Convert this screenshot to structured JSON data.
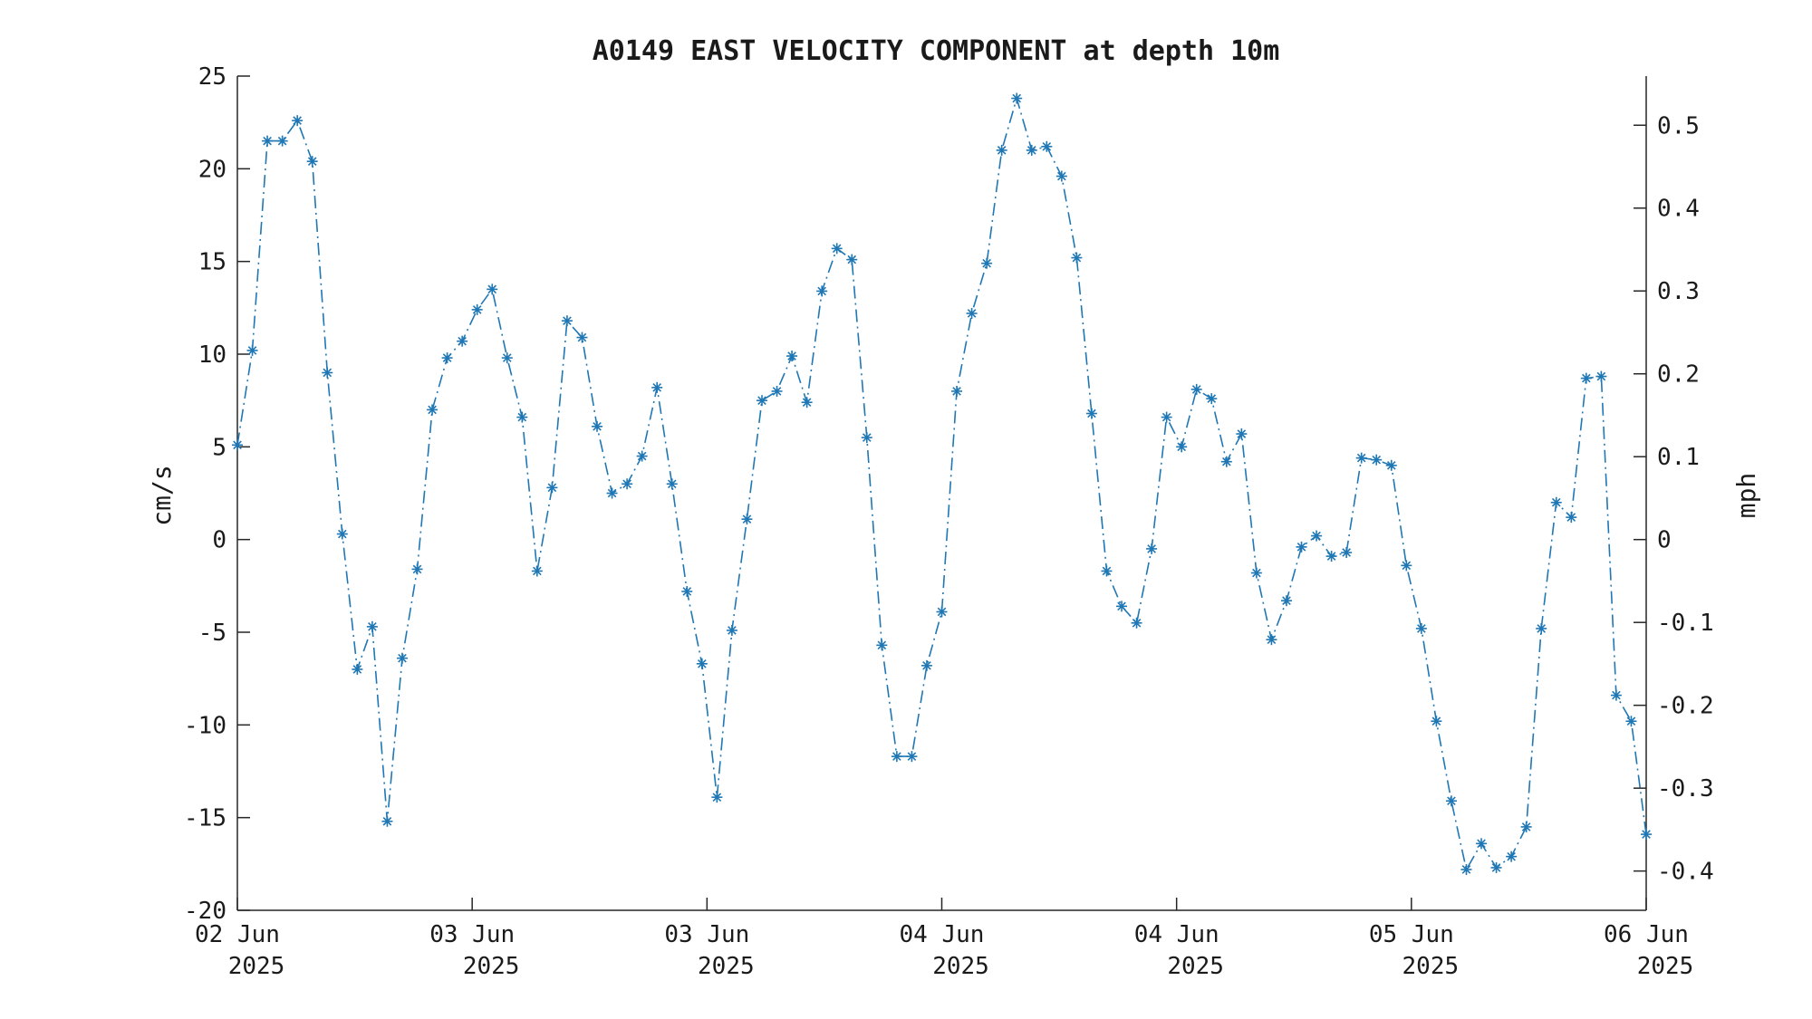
{
  "chart_data": {
    "type": "line",
    "title": "A0149 EAST VELOCITY COMPONENT at depth 10m",
    "ylabel": "cm/s",
    "y2label": "mph",
    "ylim": [
      -20,
      25
    ],
    "y2lim": [
      -0.4474,
      0.5593
    ],
    "yticks": [
      "25",
      "20",
      "15",
      "10",
      "5",
      "0",
      "-5",
      "-10",
      "-15",
      "-20"
    ],
    "y2ticks": [
      "0.5",
      "0.4",
      "0.3",
      "0.2",
      "0.1",
      "0",
      "-0.1",
      "-0.2",
      "-0.3",
      "-0.4"
    ],
    "xticks": [
      {
        "day": "02 Jun",
        "year": "2025"
      },
      {
        "day": "03 Jun",
        "year": "2025"
      },
      {
        "day": "03 Jun",
        "year": "2025"
      },
      {
        "day": "04 Jun",
        "year": "2025"
      },
      {
        "day": "04 Jun",
        "year": "2025"
      },
      {
        "day": "05 Jun",
        "year": "2025"
      },
      {
        "day": "06 Jun",
        "year": "2025"
      }
    ],
    "grid": false,
    "marker": "asterisk",
    "line_style": "dash-dot",
    "series_color": "#1f77b4",
    "series": [
      {
        "values": [
          5.1,
          10.2,
          21.5,
          21.5,
          22.6,
          20.4,
          9.0,
          0.3,
          -7.0,
          -4.7,
          -15.2,
          -6.4,
          -1.6,
          7.0,
          9.8,
          10.7,
          12.4,
          13.5,
          9.8,
          6.6,
          -1.7,
          2.8,
          11.8,
          10.9,
          6.1,
          2.5,
          3.0,
          4.5,
          8.2,
          3.0,
          -2.8,
          -6.7,
          -13.9,
          -4.9,
          1.1,
          7.5,
          8.0,
          9.9,
          7.4,
          13.4,
          15.7,
          15.1,
          5.5,
          -5.7,
          -11.7,
          -11.7,
          -6.8,
          -3.9,
          8.0,
          12.2,
          14.9,
          21.0,
          23.8,
          21.0,
          21.2,
          19.6,
          15.2,
          6.8,
          -1.7,
          -3.6,
          -4.5,
          -0.5,
          6.6,
          5.0,
          8.1,
          7.6,
          4.2,
          5.7,
          -1.8,
          -5.4,
          -3.3,
          -0.4,
          0.2,
          -0.9,
          -0.7,
          4.4,
          4.3,
          4.0,
          -1.4,
          -4.8,
          -9.8,
          -14.1,
          -17.8,
          -16.4,
          -17.7,
          -17.1,
          -15.5,
          -4.8,
          2.0,
          1.2,
          8.7,
          8.8,
          -8.4,
          -9.8,
          -15.9
        ]
      }
    ]
  }
}
